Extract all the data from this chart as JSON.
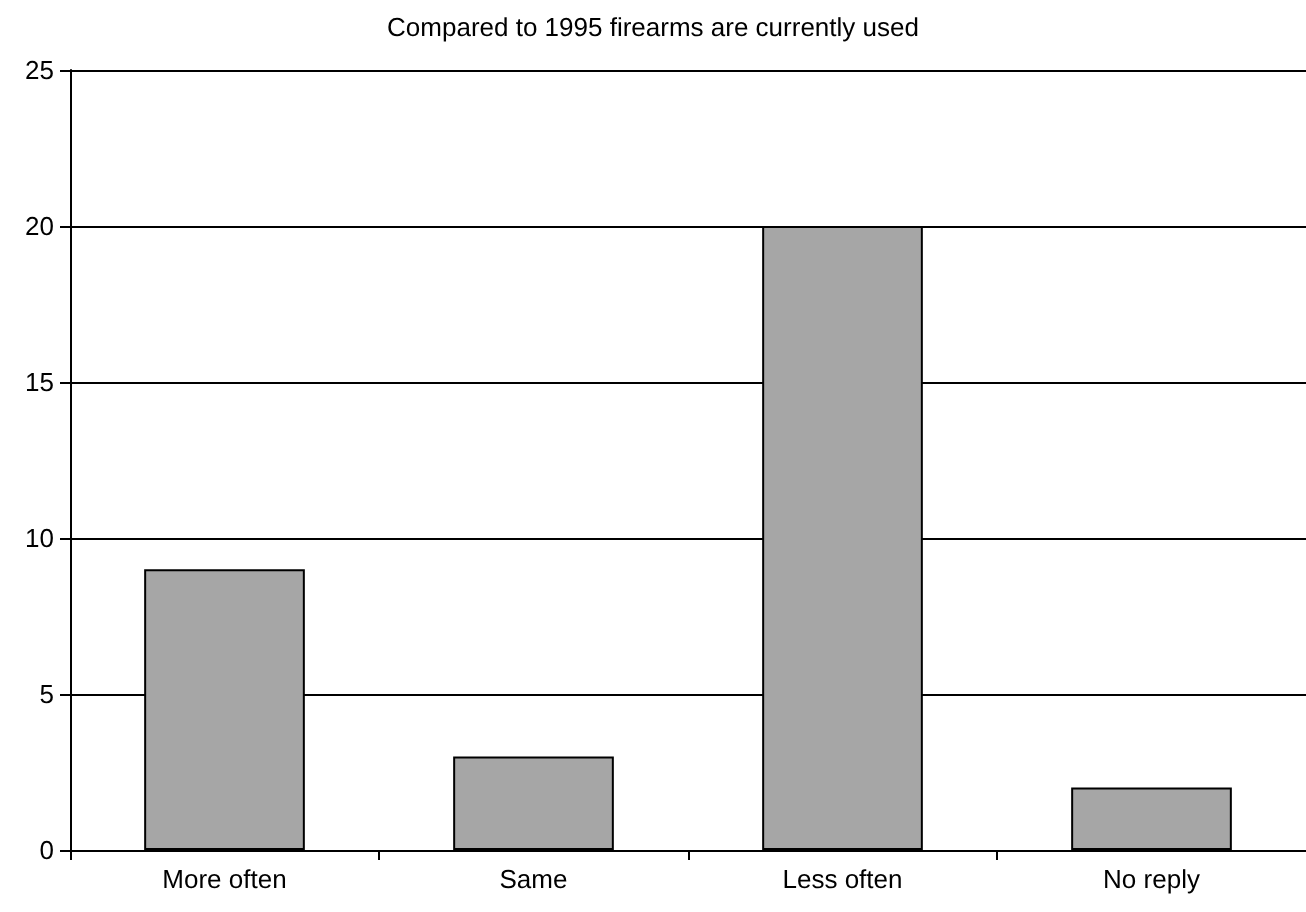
{
  "chart_data": {
    "type": "bar",
    "title": "Compared to 1995 firearms are currently used",
    "categories": [
      "More often",
      "Same",
      "Less often",
      "No reply"
    ],
    "values": [
      9,
      3,
      20,
      2
    ],
    "color": "#a6a6a6",
    "ylim": [
      0,
      25
    ],
    "yticks": [
      0,
      5,
      10,
      15,
      20,
      25
    ],
    "grid": "y"
  }
}
